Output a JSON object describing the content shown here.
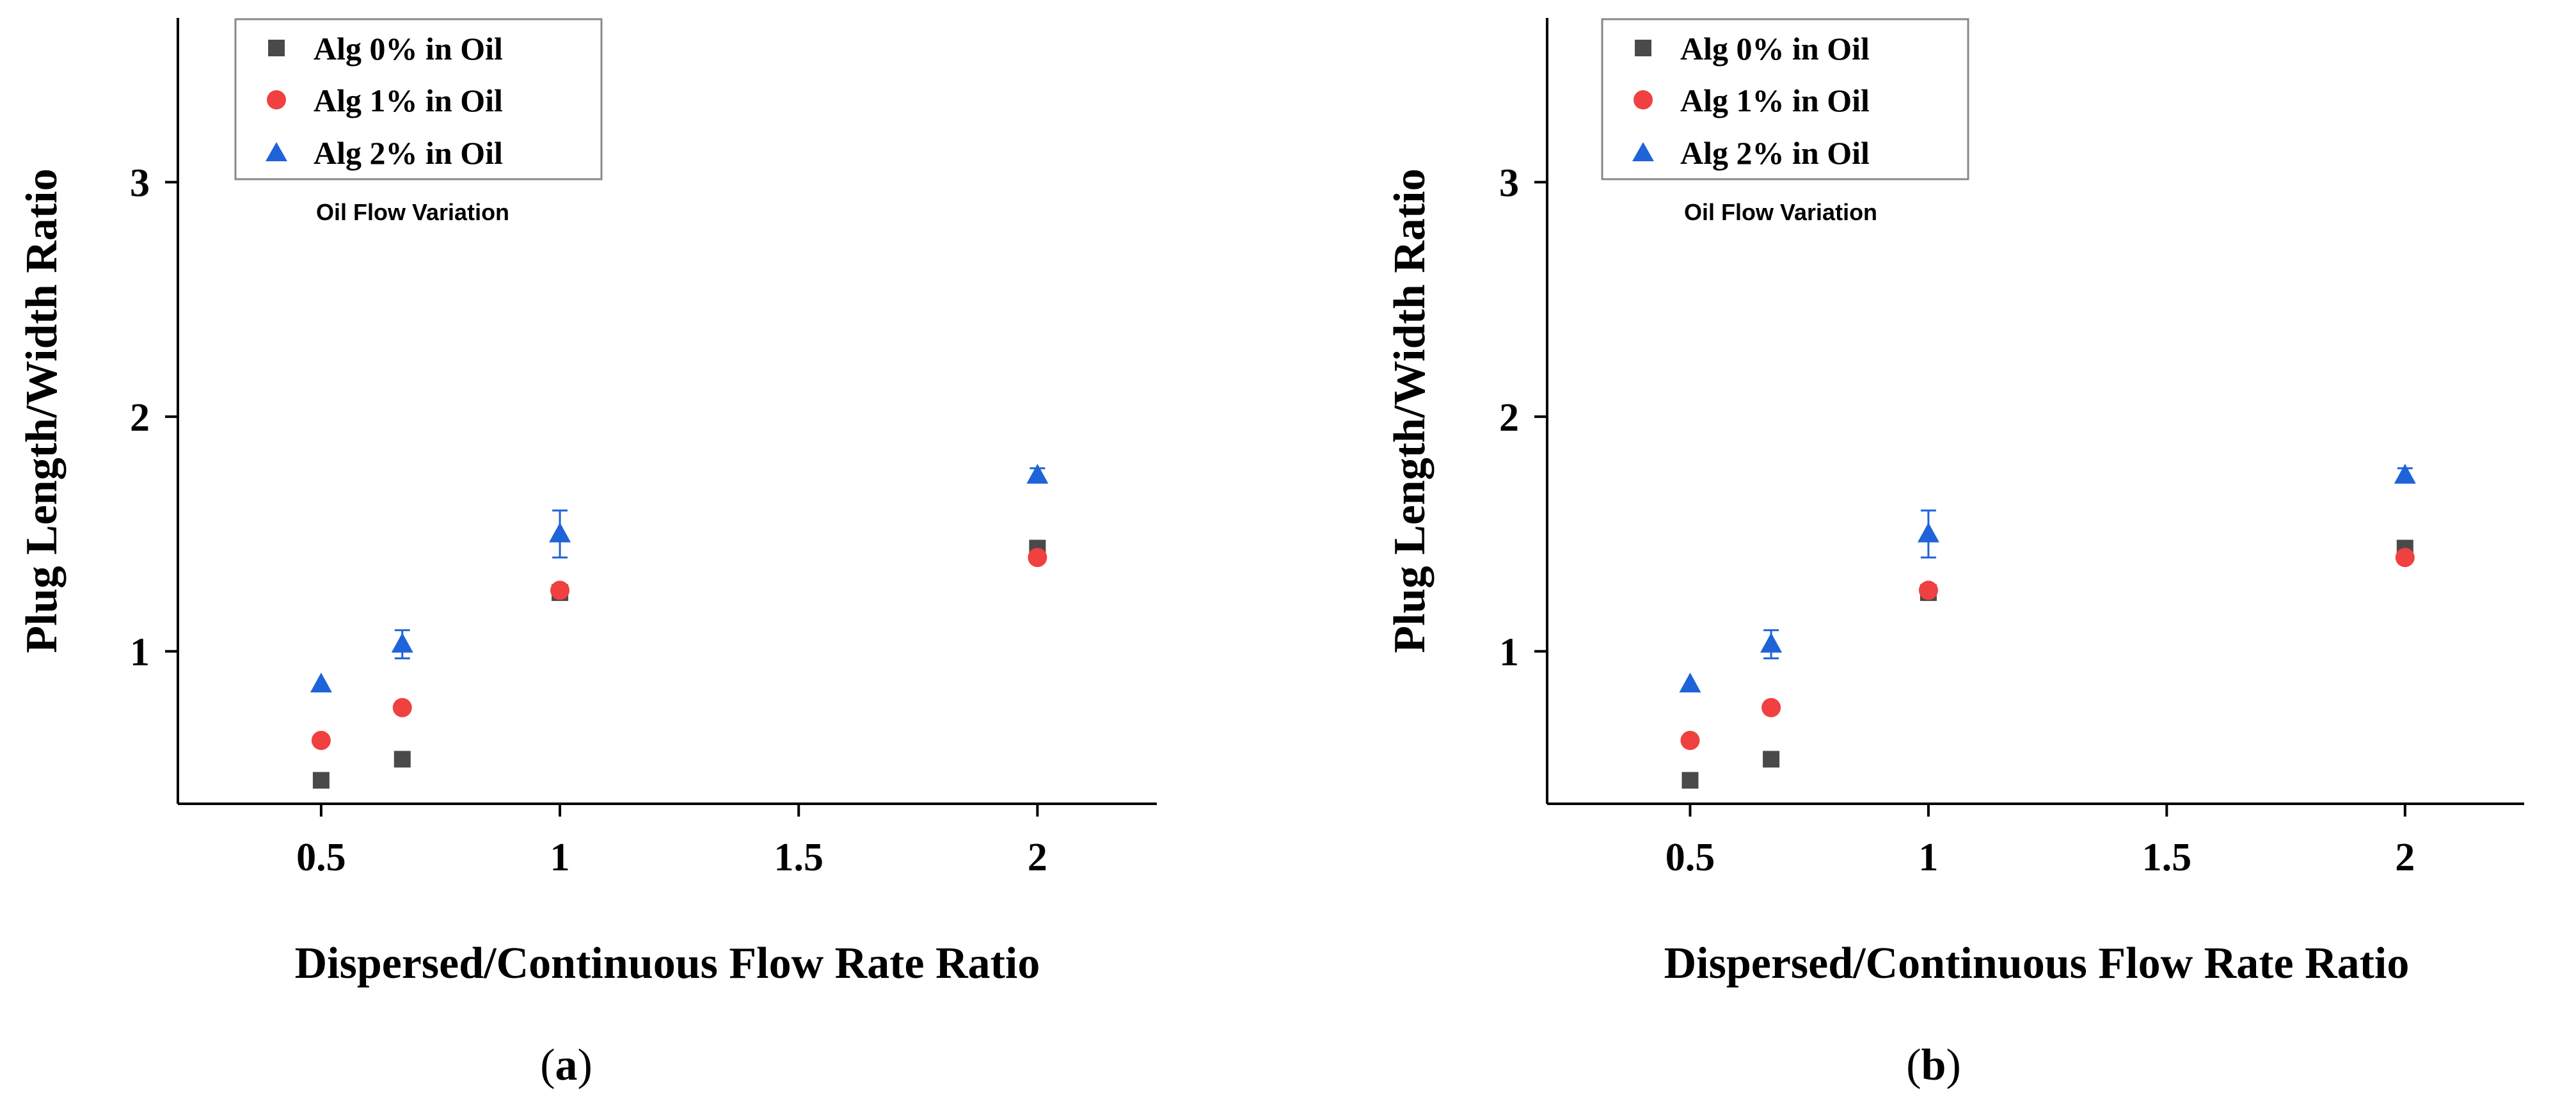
{
  "colors": {
    "alg0": "#4a4a4a",
    "alg1": "#f04040",
    "alg2": "#1f63d8"
  },
  "chart_data": [
    {
      "type": "scatter",
      "panel_label": "a",
      "xlabel": "Dispersed/Continuous Flow Rate Ratio",
      "ylabel": "Plug Length/Width Ratio",
      "xlim": [
        0.2,
        2.25
      ],
      "ylim": [
        0.35,
        3.7
      ],
      "xticks": [
        0.5,
        1,
        1.5,
        2
      ],
      "xtick_labels": [
        "0.5",
        "1",
        "1.5",
        "2"
      ],
      "yticks": [
        1,
        2,
        3
      ],
      "ytick_labels": [
        "1",
        "2",
        "3"
      ],
      "grid": false,
      "legend_position": "top-left",
      "legend_note": "Oil Flow Variation",
      "series": [
        {
          "name": "Alg 0% in Oil",
          "marker": "square",
          "color_key": "alg0",
          "x": [
            0.5,
            0.67,
            1,
            2
          ],
          "y": [
            0.45,
            0.54,
            1.25,
            1.44
          ],
          "err": [
            0,
            0,
            0,
            0
          ]
        },
        {
          "name": "Alg 1% in Oil",
          "marker": "circle",
          "color_key": "alg1",
          "x": [
            0.5,
            0.67,
            1,
            2
          ],
          "y": [
            0.62,
            0.76,
            1.26,
            1.4
          ],
          "err": [
            0,
            0,
            0,
            0
          ]
        },
        {
          "name": "Alg 2% in Oil",
          "marker": "triangle",
          "color_key": "alg2",
          "x": [
            0.5,
            0.67,
            1,
            2
          ],
          "y": [
            0.86,
            1.03,
            1.5,
            1.75
          ],
          "err": [
            0,
            0.06,
            0.1,
            0.03
          ]
        }
      ]
    },
    {
      "type": "scatter",
      "panel_label": "b",
      "xlabel": "Dispersed/Continuous Flow Rate Ratio",
      "ylabel": "Plug Length/Width Ratio",
      "xlim": [
        0.2,
        2.25
      ],
      "ylim": [
        0.35,
        3.7
      ],
      "xticks": [
        0.5,
        1,
        1.5,
        2
      ],
      "xtick_labels": [
        "0.5",
        "1",
        "1.5",
        "2"
      ],
      "yticks": [
        1,
        2,
        3
      ],
      "ytick_labels": [
        "1",
        "2",
        "3"
      ],
      "grid": false,
      "legend_position": "top-left",
      "legend_note": "Oil Flow Variation",
      "series": [
        {
          "name": "Alg 0% in Oil",
          "marker": "square",
          "color_key": "alg0",
          "x": [
            0.5,
            0.67,
            1,
            2
          ],
          "y": [
            0.45,
            0.54,
            1.25,
            1.44
          ],
          "err": [
            0,
            0,
            0,
            0
          ]
        },
        {
          "name": "Alg 1% in Oil",
          "marker": "circle",
          "color_key": "alg1",
          "x": [
            0.5,
            0.67,
            1,
            2
          ],
          "y": [
            0.62,
            0.76,
            1.26,
            1.4
          ],
          "err": [
            0,
            0,
            0,
            0
          ]
        },
        {
          "name": "Alg 2% in Oil",
          "marker": "triangle",
          "color_key": "alg2",
          "x": [
            0.5,
            0.67,
            1,
            2
          ],
          "y": [
            0.86,
            1.03,
            1.5,
            1.75
          ],
          "err": [
            0,
            0.06,
            0.1,
            0.03
          ]
        }
      ]
    }
  ]
}
